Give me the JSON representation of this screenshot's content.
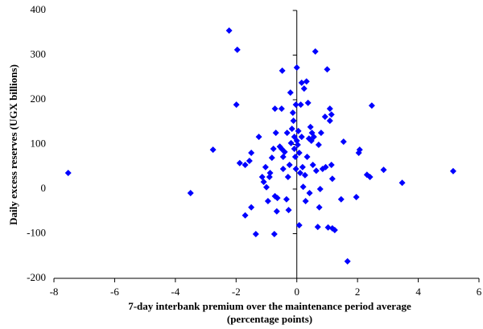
{
  "chart_data": {
    "type": "scatter",
    "xlabel": [
      "7-day interbank premium over the maintenance period average",
      "(percentage points)"
    ],
    "ylabel": "Daily excess reserves (UGX billions)",
    "color": "#0000ff",
    "xlim": [
      -8,
      6
    ],
    "xticks": [
      -8,
      -6,
      -4,
      -2,
      0,
      2,
      4,
      6
    ],
    "ylim": [
      -200,
      400
    ],
    "yticks": [
      -200,
      -100,
      0,
      100,
      200,
      300,
      400
    ],
    "x": [
      -7.53,
      -3.5,
      -2.76,
      -2.23,
      -1.96,
      -1.99,
      -1.88,
      -1.7,
      -1.56,
      -1.5,
      -1.7,
      -1.5,
      -1.35,
      -1.25,
      -1.14,
      -1.09,
      -1.0,
      -1.03,
      -0.95,
      -0.9,
      -0.88,
      -0.82,
      -0.77,
      -0.72,
      -0.69,
      -0.74,
      -0.72,
      -0.66,
      -0.64,
      -0.56,
      -0.48,
      -0.5,
      -0.5,
      -0.45,
      -0.45,
      -0.4,
      -0.34,
      -0.32,
      -0.29,
      -0.27,
      -0.24,
      -0.21,
      -0.19,
      -0.16,
      -0.13,
      -0.11,
      -0.08,
      -0.08,
      -0.05,
      -0.03,
      -0.03,
      0,
      0,
      0.03,
      0.05,
      0.08,
      0.08,
      0.11,
      0.13,
      0.16,
      0.16,
      0.19,
      0.21,
      0.24,
      0.27,
      0.29,
      0.32,
      0.34,
      0.37,
      0.4,
      0.42,
      0.45,
      0.48,
      0.5,
      0.53,
      0.56,
      0.61,
      0.64,
      0.69,
      0.72,
      0.74,
      0.77,
      0.8,
      0.85,
      0.93,
      0.95,
      1.0,
      1.03,
      1.09,
      1.09,
      1.14,
      1.17,
      1.14,
      1.17,
      1.25,
      1.46,
      1.54,
      1.67,
      1.96,
      2.07,
      2.04,
      2.31,
      2.41,
      2.47,
      2.86,
      3.47,
      5.15
    ],
    "values": [
      36,
      -9,
      88,
      355,
      312,
      189,
      58,
      54,
      63,
      81,
      -59,
      -41,
      -101,
      117,
      27,
      16,
      4,
      49,
      -27,
      27,
      36,
      70,
      90,
      180,
      126,
      -101,
      -16,
      -50,
      -20,
      95,
      265,
      180,
      90,
      72,
      45,
      83,
      -23,
      126,
      27,
      -47,
      54,
      216,
      103,
      135,
      171,
      153,
      117,
      90,
      72,
      189,
      45,
      272,
      108,
      99,
      130,
      -81,
      81,
      36,
      189,
      238,
      117,
      49,
      5,
      225,
      31,
      -27,
      241,
      72,
      193,
      113,
      -9,
      139,
      108,
      126,
      54,
      117,
      308,
      41,
      -85,
      99,
      -41,
      0,
      126,
      45,
      162,
      49,
      268,
      -86,
      180,
      153,
      167,
      -88,
      54,
      23,
      -92,
      -23,
      106,
      -162,
      -18,
      88,
      81,
      32,
      27,
      187,
      43,
      14,
      40
    ]
  }
}
